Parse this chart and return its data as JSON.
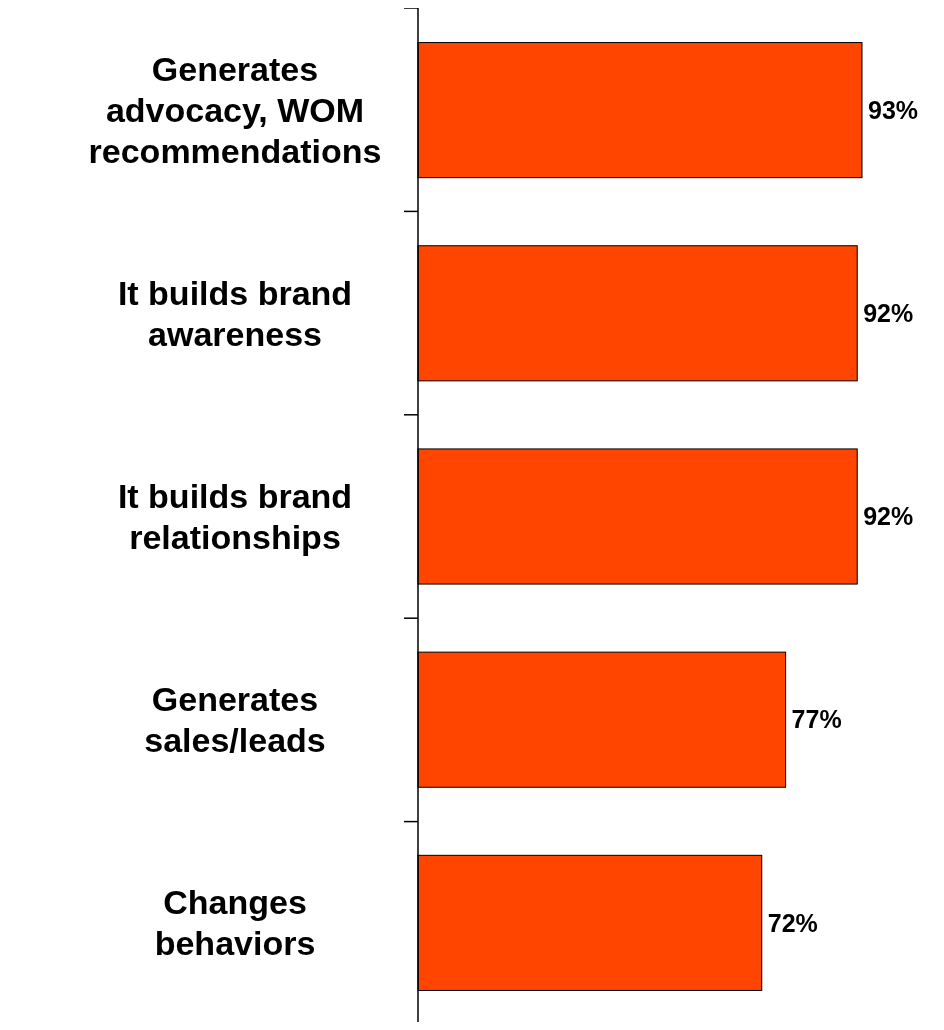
{
  "chart_data": {
    "type": "bar",
    "orientation": "horizontal",
    "categories": [
      "Generates advocacy, WOM recommendations",
      "It builds brand awareness",
      "It builds brand relationships",
      "Generates sales/leads",
      "Changes behaviors"
    ],
    "values": [
      93,
      92,
      92,
      77,
      72
    ],
    "value_labels": [
      "93%",
      "92%",
      "92%",
      "77%",
      "72%"
    ],
    "color": "#ff4500"
  }
}
